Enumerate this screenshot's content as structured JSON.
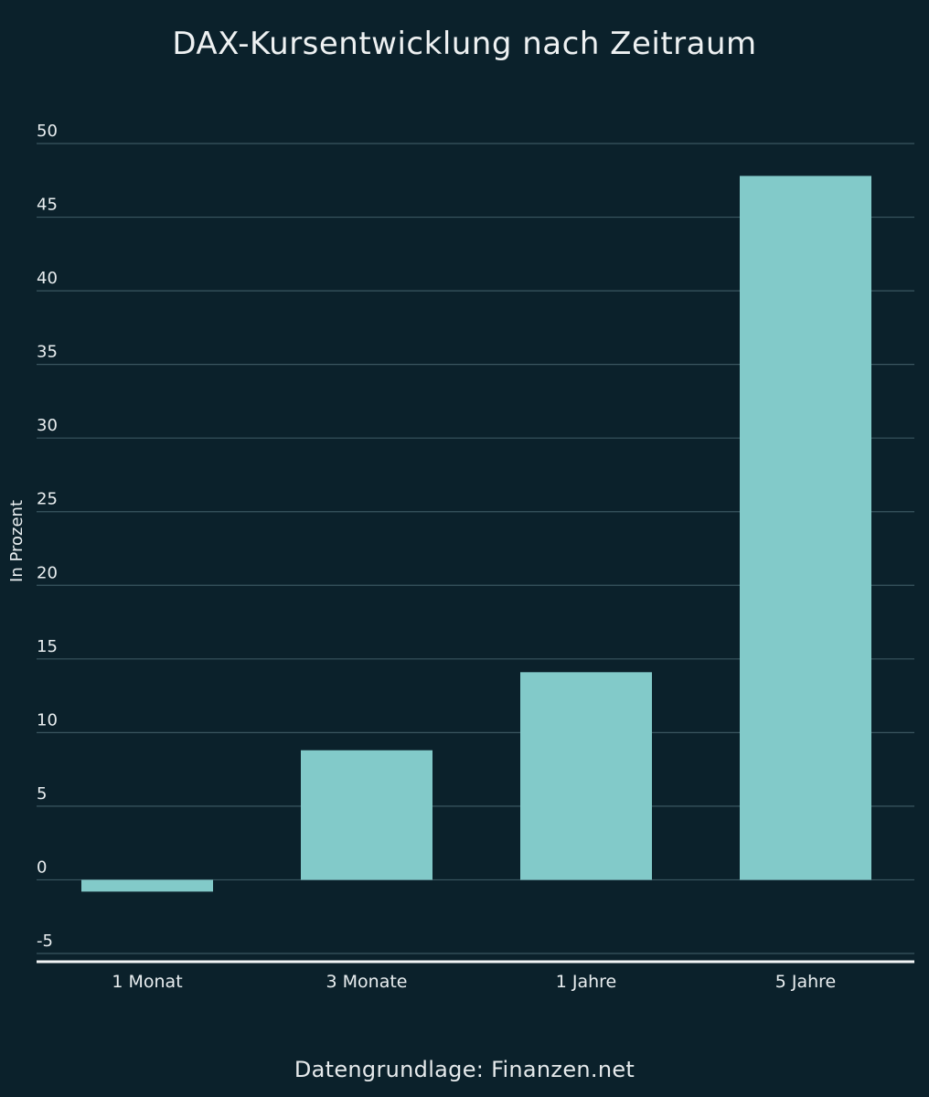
{
  "chart_data": {
    "type": "bar",
    "title": "DAX-Kursentwicklung nach Zeitraum",
    "ylabel": "In Prozent",
    "xlabel": "",
    "categories": [
      "1 Monat",
      "3 Monate",
      "1 Jahre",
      "5 Jahre"
    ],
    "values": [
      -0.8,
      8.8,
      14.1,
      47.8
    ],
    "ylim": [
      -5,
      50
    ],
    "yticks": [
      "50",
      "45",
      "40",
      "35",
      "30",
      "25",
      "20",
      "15",
      "10",
      "5",
      "0",
      "-5"
    ],
    "ytick_values": [
      50,
      45,
      40,
      35,
      30,
      25,
      20,
      15,
      10,
      5,
      0,
      -5
    ],
    "grid": true,
    "legend": "none",
    "colors": {
      "background": "#0b212b",
      "bar": "#82cac9",
      "grid": "#3b5660",
      "baseline": "#f2f5f6",
      "text": "#e9eef0"
    }
  },
  "footer": {
    "source": "Datengrundlage: Finanzen.net"
  }
}
